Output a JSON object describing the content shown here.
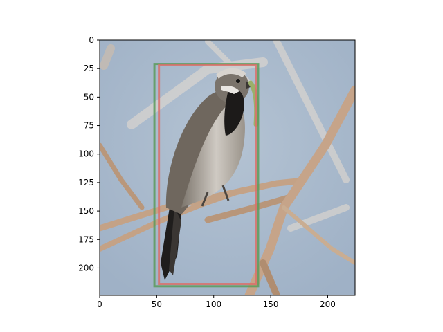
{
  "chart_data": {
    "type": "image",
    "image_extent": {
      "width": 224,
      "height": 224
    },
    "xlim": [
      0,
      224
    ],
    "ylim": [
      224,
      0
    ],
    "x_ticks": [
      0,
      50,
      100,
      150,
      200
    ],
    "y_ticks": [
      0,
      25,
      50,
      75,
      100,
      125,
      150,
      175,
      200
    ],
    "grid": false,
    "boxes": [
      {
        "color": "#5b9a5b",
        "x0": 48,
        "y0": 21,
        "x1": 139,
        "y1": 216
      },
      {
        "color": "#d9706a",
        "x0": 52,
        "y0": 22,
        "x1": 137,
        "y1": 214
      }
    ],
    "image_description_colors": {
      "sky": "#a6b8cc",
      "branch": "#c9a98a",
      "bird_body": "#8c8479",
      "bird_dark": "#1e1c1b"
    }
  }
}
